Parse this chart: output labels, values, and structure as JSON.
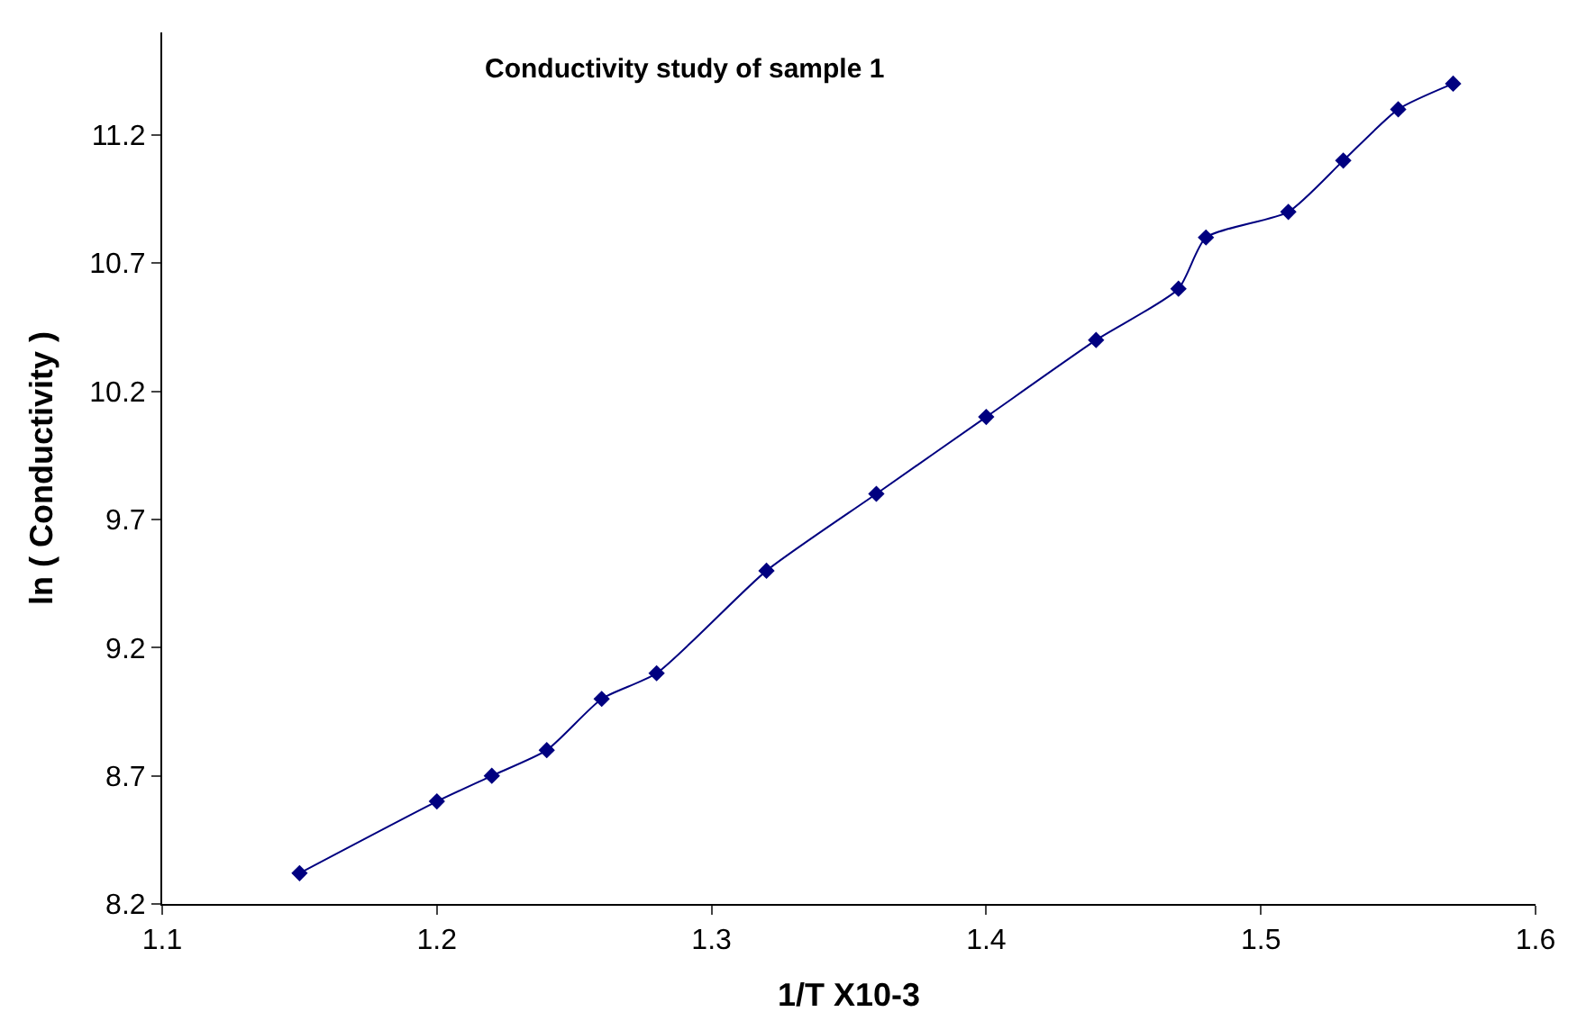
{
  "chart_data": {
    "type": "line",
    "title": "Conductivity study of sample 1",
    "xlabel": "1/T X10-3",
    "ylabel": "ln ( Conductivity )",
    "x": [
      1.15,
      1.2,
      1.22,
      1.24,
      1.26,
      1.28,
      1.32,
      1.36,
      1.4,
      1.44,
      1.47,
      1.48,
      1.51,
      1.53,
      1.55,
      1.57
    ],
    "series": [
      {
        "color": "#000080",
        "values": [
          8.32,
          8.6,
          8.7,
          8.8,
          9.0,
          9.1,
          9.5,
          9.8,
          10.1,
          10.4,
          10.6,
          10.8,
          10.9,
          11.1,
          11.3,
          11.4
        ]
      }
    ],
    "xlim": [
      1.1,
      1.6
    ],
    "xticks": [
      1.1,
      1.2,
      1.3,
      1.4,
      1.5,
      1.6
    ],
    "ylim": [
      8.2,
      11.6
    ],
    "yticks": [
      8.2,
      8.7,
      9.2,
      9.7,
      10.2,
      10.7,
      11.2
    ],
    "marker": "diamond",
    "line_style": "solid",
    "legend": false
  }
}
